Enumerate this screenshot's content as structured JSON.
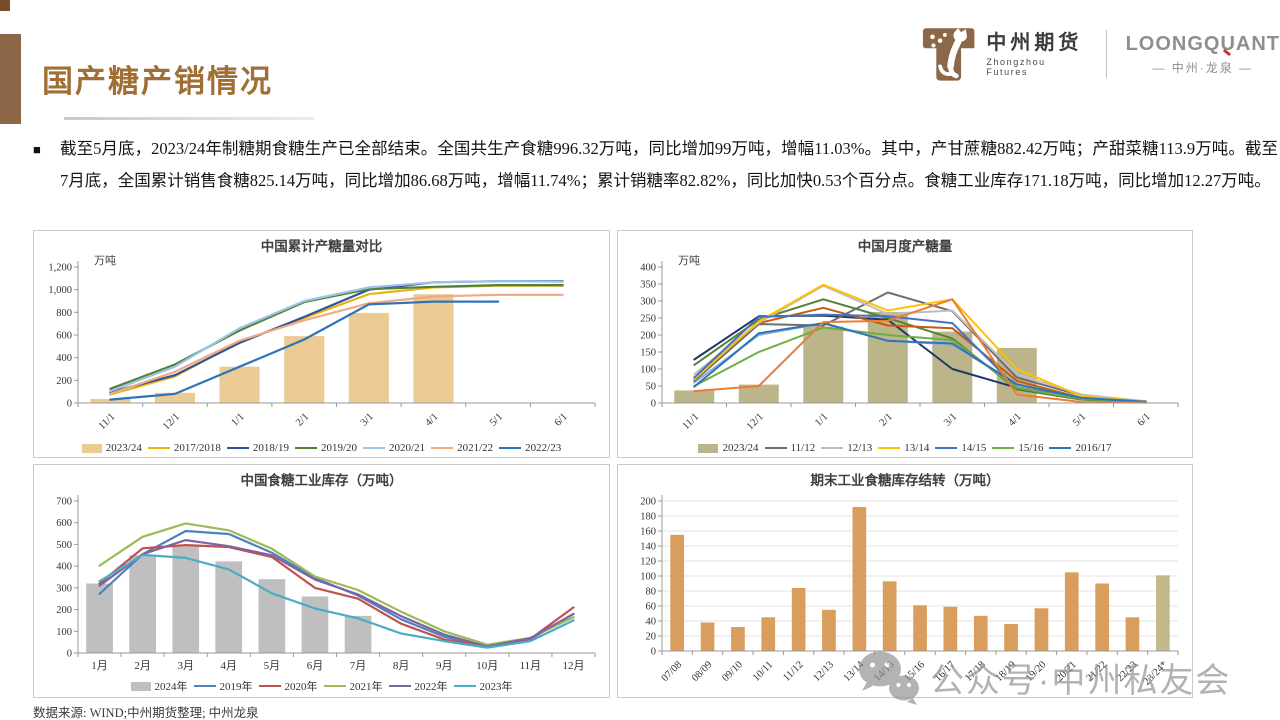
{
  "slide": {
    "title": "国产糖产销情况",
    "bullet_char": "■",
    "paragraph": "截至5月底，2023/24年制糖期食糖生产已全部结束。全国共生产食糖996.32万吨，同比增加99万吨，增幅11.03%。其中，产甘蔗糖882.42万吨；产甜菜糖113.9万吨。截至7月底，全国累计销售食糖825.14万吨，同比增加86.68万吨，增幅11.74%；累计销糖率82.82%，同比加快0.53个百分点。食糖工业库存171.18万吨，同比增加12.27万吨。",
    "source_note": "数据来源: WIND;中州期货整理; 中州龙泉"
  },
  "header": {
    "zhongzhou": {
      "name": "中州期货",
      "subtitle": "Zhongzhou Futures"
    },
    "loongquant": {
      "name": "LOONGQUANT",
      "subtitle": "— 中州·龙泉 —"
    }
  },
  "watermark": {
    "text": "公众号·中州私友会"
  },
  "colors": {
    "accent_brown": "#8C6748",
    "title_brown": "#A06F36",
    "panel_border": "#CACACA",
    "watermark_gray": "#8E8E8E"
  },
  "chart_data": [
    {
      "type": "bar+line",
      "title": "中国累计产糖量对比",
      "unit_label": "万吨",
      "ylim": [
        0,
        1200
      ],
      "ytick_step": 200,
      "grid": false,
      "x_label_rotate": true,
      "legend_position": "bottom",
      "categories": [
        "11/1",
        "12/1",
        "1/1",
        "2/1",
        "3/1",
        "4/1",
        "5/1",
        "6/1"
      ],
      "bar_series": {
        "name": "2023/24",
        "color": "#EBCA94",
        "values": [
          35,
          90,
          320,
          590,
          795,
          960,
          null,
          null
        ]
      },
      "line_series": [
        {
          "name": "2017/2018",
          "color": "#E9B412",
          "values": [
            75,
            235,
            540,
            750,
            960,
            1020,
            1035,
            1035
          ]
        },
        {
          "name": "2018/19",
          "color": "#2F5597",
          "values": [
            95,
            245,
            530,
            760,
            1000,
            1065,
            1075,
            1075
          ]
        },
        {
          "name": "2019/20",
          "color": "#538135",
          "values": [
            125,
            340,
            640,
            890,
            1005,
            1025,
            1040,
            1040
          ]
        },
        {
          "name": "2020/21",
          "color": "#9DC3E6",
          "values": [
            105,
            320,
            660,
            900,
            1020,
            1065,
            1075,
            1070
          ]
        },
        {
          "name": "2021/22",
          "color": "#F2AA84",
          "values": [
            80,
            275,
            550,
            730,
            880,
            940,
            955,
            955
          ]
        },
        {
          "name": "2022/23",
          "color": "#2E75B6",
          "values": [
            30,
            80,
            320,
            560,
            870,
            895,
            895,
            null
          ]
        }
      ]
    },
    {
      "type": "bar+line",
      "title": "中国月度产糖量",
      "unit_label": "万吨",
      "ylim": [
        0,
        400
      ],
      "ytick_step": 50,
      "grid": false,
      "x_label_rotate": true,
      "legend_position": "bottom",
      "line_width": 2,
      "categories": [
        "11/1",
        "12/1",
        "1/1",
        "2/1",
        "3/1",
        "4/1",
        "5/1",
        "6/1"
      ],
      "bar_series": {
        "name": "2023/24",
        "color": "#BDB58A",
        "values": [
          37,
          54,
          225,
          268,
          210,
          162,
          null,
          null
        ]
      },
      "line_series": [
        {
          "name": "",
          "in_legend": false,
          "color": "#1F3864",
          "values": [
            128,
            255,
            257,
            245,
            100,
            45,
            15,
            3
          ]
        },
        {
          "name": "",
          "in_legend": false,
          "color": "#538135",
          "values": [
            112,
            245,
            305,
            250,
            190,
            40,
            10,
            3
          ]
        },
        {
          "name": "",
          "in_legend": false,
          "color": "#C55A11",
          "values": [
            70,
            235,
            280,
            228,
            220,
            65,
            15,
            3
          ]
        },
        {
          "name": "",
          "in_legend": false,
          "color": "#8FAADC",
          "values": [
            60,
            200,
            235,
            183,
            172,
            55,
            15,
            3
          ]
        },
        {
          "name": "11/12",
          "color": "#6E6E6E",
          "values": [
            65,
            232,
            228,
            325,
            270,
            75,
            22,
            5
          ]
        },
        {
          "name": "12/13",
          "color": "#BFBFBF",
          "values": [
            85,
            236,
            345,
            262,
            272,
            85,
            25,
            5
          ]
        },
        {
          "name": "13/14",
          "color": "#FFC000",
          "values": [
            70,
            240,
            348,
            272,
            305,
            100,
            20,
            4
          ]
        },
        {
          "name": "14/15",
          "color": "#4472C4",
          "values": [
            75,
            253,
            260,
            255,
            235,
            45,
            15,
            4
          ]
        },
        {
          "name": "15/16",
          "color": "#70AD47",
          "values": [
            50,
            150,
            222,
            200,
            185,
            45,
            12,
            3
          ]
        },
        {
          "name": "2016/17",
          "color": "#2E75B6",
          "values": [
            48,
            205,
            235,
            183,
            175,
            55,
            15,
            3
          ]
        },
        {
          "name": "",
          "in_legend": false,
          "color": "#ED7D31",
          "values": [
            35,
            50,
            238,
            242,
            305,
            25,
            3,
            1
          ]
        }
      ]
    },
    {
      "type": "bar+line",
      "title": "中国食糖工业库存（万吨）",
      "ylim": [
        0,
        700
      ],
      "ytick_step": 100,
      "grid": false,
      "x_label_rotate": false,
      "legend_position": "bottom",
      "categories": [
        "1月",
        "2月",
        "3月",
        "4月",
        "5月",
        "6月",
        "7月",
        "8月",
        "9月",
        "10月",
        "11月",
        "12月"
      ],
      "bar_series": {
        "name": "2024年",
        "color": "#BFBFBF",
        "values": [
          320,
          450,
          490,
          422,
          340,
          260,
          171,
          null,
          null,
          null,
          null,
          null
        ]
      },
      "line_series": [
        {
          "name": "2019年",
          "color": "#4F81BD",
          "values": [
            272,
            455,
            562,
            548,
            462,
            345,
            265,
            155,
            75,
            30,
            63,
            180
          ]
        },
        {
          "name": "2020年",
          "color": "#C0504D",
          "values": [
            320,
            482,
            497,
            488,
            442,
            300,
            250,
            135,
            62,
            30,
            65,
            210
          ]
        },
        {
          "name": "2021年",
          "color": "#9BBB59",
          "values": [
            402,
            535,
            597,
            565,
            480,
            352,
            290,
            190,
            100,
            38,
            70,
            165
          ]
        },
        {
          "name": "2022年",
          "color": "#8064A2",
          "values": [
            310,
            455,
            520,
            492,
            450,
            338,
            270,
            170,
            85,
            30,
            68,
            180
          ]
        },
        {
          "name": "2023年",
          "color": "#4BACC6",
          "values": [
            330,
            452,
            438,
            385,
            275,
            205,
            160,
            90,
            55,
            25,
            55,
            150
          ]
        }
      ]
    },
    {
      "type": "bar",
      "title": "期末工业食糖库存结转（万吨）",
      "ylim": [
        0,
        200
      ],
      "ytick_step": 20,
      "grid": true,
      "x_label_rotate": true,
      "categories": [
        "07/08",
        "08/09",
        "09/10",
        "10/11",
        "11/12",
        "12/13",
        "13/14",
        "14/15",
        "15/16",
        "16/17",
        "17/18",
        "18/19",
        "19/20",
        "20/21",
        "21/22",
        "22/23",
        "23/24*"
      ],
      "values": [
        155,
        38,
        32,
        45,
        84,
        55,
        192,
        93,
        61,
        59,
        47,
        36,
        57,
        105,
        90,
        45,
        101
      ],
      "bar_color": "#D99E5E",
      "last_bar_color": "#C2BA8C"
    }
  ]
}
